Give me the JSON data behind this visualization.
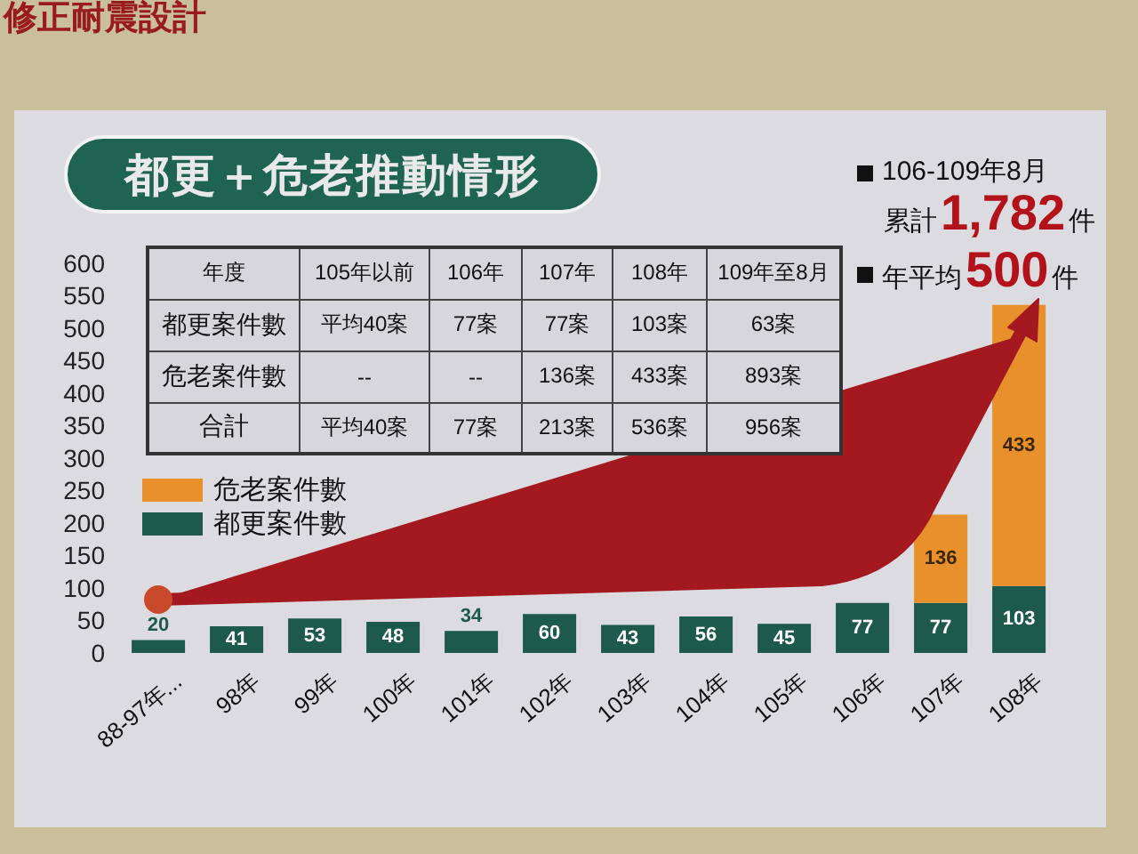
{
  "chart_data": {
    "type": "bar",
    "title": "都更＋危老推動情形",
    "categories": [
      "88-97年...",
      "98年",
      "99年",
      "100年",
      "101年",
      "102年",
      "103年",
      "104年",
      "105年",
      "106年",
      "107年",
      "108年"
    ],
    "series": [
      {
        "name": "都更案件數",
        "color": "#1d5a4c",
        "values": [
          20,
          41,
          53,
          48,
          34,
          60,
          43,
          56,
          45,
          77,
          77,
          103
        ]
      },
      {
        "name": "危老案件數",
        "color": "#e8902c",
        "values": [
          null,
          null,
          null,
          null,
          null,
          null,
          null,
          null,
          null,
          null,
          136,
          433
        ]
      }
    ],
    "stacked": true,
    "data_labels": true,
    "legend": "left",
    "ylim": [
      0,
      600
    ],
    "yticks": [
      0,
      50,
      100,
      150,
      200,
      250,
      300,
      350,
      400,
      450,
      500,
      550,
      600
    ],
    "annotations": [
      "修正耐震設計",
      "106-109年8月",
      "累計1,782件",
      "年平均500件",
      "年度",
      "105年以前",
      "106年",
      "107年",
      "108年",
      "109年至8月",
      "都更案件數",
      "平均40案",
      "77案",
      "77案",
      "103案",
      "63案",
      "危老案件數",
      "--",
      "--",
      "136案",
      "433案",
      "893案",
      "合計",
      "平均40案",
      "77案",
      "213案",
      "536案",
      "956案"
    ]
  }
}
